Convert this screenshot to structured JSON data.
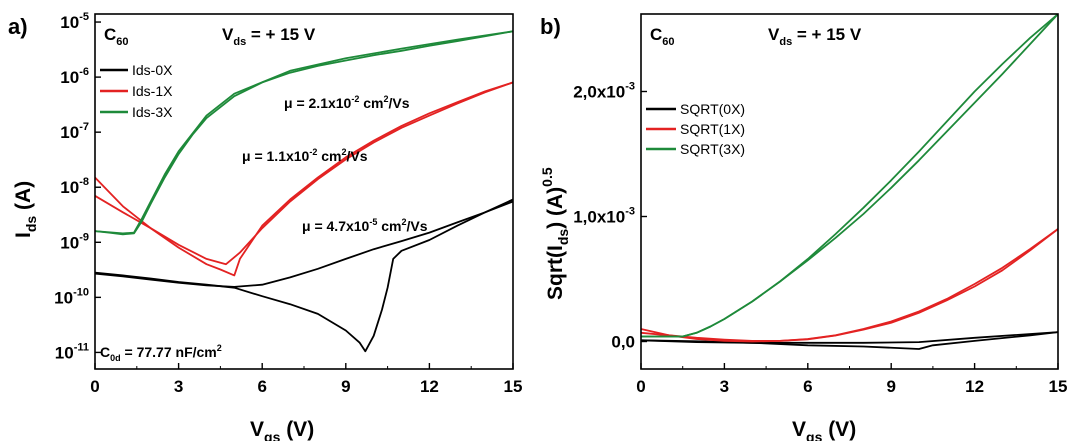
{
  "chart_data": [
    {
      "panel": "a)",
      "type": "line",
      "material": "C",
      "material_sub": "60",
      "condition": {
        "main": "V",
        "sub": "ds",
        "rest": " = + 15 V"
      },
      "xlabel": {
        "main": "V",
        "sub": "gs",
        "rest": " (V)"
      },
      "ylabel": {
        "main": "I",
        "sub": "ds",
        "rest": " (A)"
      },
      "y_scale": "log",
      "xlim": [
        0,
        15
      ],
      "ylim": [
        5e-12,
        1.4e-05
      ],
      "x_ticks": [
        "0",
        "3",
        "6",
        "9",
        "12",
        "15"
      ],
      "y_ticks": [
        {
          "base": "10",
          "exp": "-11",
          "value": 1e-11
        },
        {
          "base": "10",
          "exp": "-10",
          "value": 1e-10
        },
        {
          "base": "10",
          "exp": "-9",
          "value": 1e-09
        },
        {
          "base": "10",
          "exp": "-8",
          "value": 1e-08
        },
        {
          "base": "10",
          "exp": "-7",
          "value": 1e-07
        },
        {
          "base": "10",
          "exp": "-6",
          "value": 1e-06
        },
        {
          "base": "10",
          "exp": "-5",
          "value": 1e-05
        }
      ],
      "legend_position": "top-left",
      "series": [
        {
          "name": "Ids-0X",
          "color": "#000000",
          "x": [
            0,
            1,
            2,
            3,
            4,
            5,
            6,
            7,
            8,
            9,
            9.5,
            9.7,
            10,
            10.3,
            10.5,
            10.7,
            11,
            12,
            13,
            14,
            15
          ],
          "y": [
            2.8e-10,
            2.5e-10,
            2.2e-10,
            1.9e-10,
            1.7e-10,
            1.5e-10,
            1.05e-10,
            7.5e-11,
            5e-11,
            2.5e-11,
            1.5e-11,
            1.05e-11,
            2e-11,
            6e-11,
            1.5e-10,
            5e-10,
            7e-10,
            1.1e-09,
            2e-09,
            3.5e-09,
            6e-09
          ],
          "x_back": [
            15,
            14,
            13,
            12,
            11,
            10,
            9,
            8,
            7,
            6,
            5,
            4,
            3,
            2,
            1,
            0
          ],
          "y_back": [
            5.5e-09,
            3.5e-09,
            2.3e-09,
            1.5e-09,
            1.05e-09,
            7.5e-10,
            5e-10,
            3.3e-10,
            2.3e-10,
            1.7e-10,
            1.55e-10,
            1.65e-10,
            1.85e-10,
            2.1e-10,
            2.4e-10,
            2.7e-10
          ]
        },
        {
          "name": "Ids-1X",
          "color": "#e32222",
          "x": [
            0,
            1,
            2,
            3,
            4,
            4.5,
            5,
            5.2,
            6,
            7,
            8,
            9,
            10,
            11,
            12,
            13,
            14,
            15
          ],
          "y": [
            1.5e-08,
            4.5e-09,
            1.8e-09,
            8e-10,
            4e-10,
            3.2e-10,
            2.5e-10,
            5e-10,
            2e-09,
            6e-09,
            1.5e-08,
            3.5e-08,
            7e-08,
            1.3e-07,
            2.2e-07,
            3.5e-07,
            5.5e-07,
            8e-07
          ],
          "x_back": [
            15,
            14,
            13,
            12,
            11,
            10,
            9,
            8,
            7,
            6,
            5.2,
            4.7,
            4,
            3,
            2,
            1,
            0
          ],
          "y_back": [
            8e-07,
            5.3e-07,
            3.3e-07,
            2e-07,
            1.2e-07,
            6.5e-08,
            3.2e-08,
            1.4e-08,
            5.5e-09,
            1.8e-09,
            6.5e-10,
            4e-10,
            5e-10,
            9e-10,
            1.8e-09,
            3.5e-09,
            7e-09
          ]
        },
        {
          "name": "Ids-3X",
          "color": "#1e8a3a",
          "x": [
            0,
            0.5,
            1,
            1.4,
            1.7,
            2,
            2.5,
            3,
            3.5,
            4,
            5,
            6,
            7,
            8,
            9,
            10,
            11,
            12,
            13,
            14,
            15
          ],
          "y": [
            1.6e-09,
            1.5e-09,
            1.4e-09,
            1.45e-09,
            2.5e-09,
            5e-09,
            1.5e-08,
            4e-08,
            9e-08,
            1.8e-07,
            4.5e-07,
            8e-07,
            1.2e-06,
            1.6e-06,
            2e-06,
            2.5e-06,
            3e-06,
            3.7e-06,
            4.5e-06,
            5.5e-06,
            6.8e-06
          ],
          "x_back": [
            15,
            13,
            11,
            9,
            7,
            5,
            4,
            3,
            2.5,
            2,
            1.7,
            1.4,
            1,
            0
          ],
          "y_back": [
            6.8e-06,
            4.8e-06,
            3.3e-06,
            2.2e-06,
            1.3e-06,
            5e-07,
            2e-07,
            4.5e-08,
            1.7e-08,
            5.5e-09,
            2.8e-09,
            1.5e-09,
            1.45e-09,
            1.6e-09
          ]
        }
      ],
      "annotations": [
        {
          "text": "μ = 2.1x10",
          "sup": "-2",
          "tail": " cm",
          "tail_sup": "2",
          "end": "/Vs",
          "color": "#1e8a3a"
        },
        {
          "text": "μ = 1.1x10",
          "sup": "-2",
          "tail": " cm",
          "tail_sup": "2",
          "end": "/Vs",
          "color": "#e32222"
        },
        {
          "text": "μ = 4.7x10",
          "sup": "-5",
          "tail": " cm",
          "tail_sup": "2",
          "end": "/Vs",
          "color": "#000000"
        },
        {
          "text": "C",
          "sub": "0d",
          "tail": " = 77.77 nF/cm",
          "tail_sup": "2",
          "end": "",
          "color": "#8b2020"
        }
      ]
    },
    {
      "panel": "b)",
      "type": "line",
      "material": "C",
      "material_sub": "60",
      "condition": {
        "main": "V",
        "sub": "ds",
        "rest": " = + 15 V"
      },
      "xlabel": {
        "main": "V",
        "sub": "gs",
        "rest": " (V)"
      },
      "ylabel": {
        "main": "Sqrt(I",
        "sub": "ds",
        "rest": ") (A)",
        "sup": "0.5"
      },
      "y_scale": "linear",
      "xlim": [
        0,
        15
      ],
      "ylim": [
        -0.00022,
        0.00262
      ],
      "x_ticks": [
        "0",
        "3",
        "6",
        "9",
        "12",
        "15"
      ],
      "y_ticks": [
        {
          "base": "0,0",
          "exp": "",
          "value": 0
        },
        {
          "base": "1,0x10",
          "exp": "-3",
          "value": 0.001
        },
        {
          "base": "2,0x10",
          "exp": "-3",
          "value": 0.002
        }
      ],
      "legend_position": "top-left",
      "series": [
        {
          "name": "SQRT(0X)",
          "color": "#000000",
          "x": [
            0,
            2,
            4,
            6,
            8,
            10,
            10.5,
            12,
            14,
            15
          ],
          "y": [
            1e-05,
            2e-06,
            -1e-05,
            -3e-05,
            -4e-05,
            -6e-05,
            -3e-05,
            5e-06,
            5e-05,
            7.5e-05
          ],
          "x_back": [
            15,
            12,
            10,
            8,
            6,
            4,
            2,
            0
          ],
          "y_back": [
            7.5e-05,
            3e-05,
            -5e-06,
            -1e-05,
            -1e-05,
            -1e-05,
            -5e-06,
            1e-05
          ]
        },
        {
          "name": "SQRT(1X)",
          "color": "#e32222",
          "x": [
            0,
            1,
            2,
            3,
            4,
            5,
            6,
            7,
            8,
            9,
            10,
            11,
            12,
            13,
            14,
            15
          ],
          "y": [
            0.0001,
            5e-05,
            2e-05,
            5e-06,
            0,
            5e-06,
            2e-05,
            5e-05,
            0.0001,
            0.00016,
            0.00024,
            0.00034,
            0.00046,
            0.00059,
            0.00074,
            0.0009
          ],
          "x_back": [
            15,
            14,
            13,
            12,
            11,
            10,
            9,
            8,
            7,
            6,
            5,
            4,
            3,
            2,
            1,
            0
          ],
          "y_back": [
            0.0009,
            0.00073,
            0.00057,
            0.00044,
            0.00033,
            0.00023,
            0.00015,
            9.5e-05,
            4.8e-05,
            1.8e-05,
            5e-06,
            5e-06,
            1.5e-05,
            3e-05,
            5e-05,
            7e-05
          ]
        },
        {
          "name": "SQRT(3X)",
          "color": "#1e8a3a",
          "x": [
            0,
            1,
            1.5,
            2,
            2.5,
            3,
            4,
            5,
            6,
            7,
            8,
            9,
            10,
            11,
            12,
            13,
            14,
            15
          ],
          "y": [
            4e-05,
            4e-05,
            4e-05,
            7e-05,
            0.00012,
            0.00018,
            0.00032,
            0.00048,
            0.00066,
            0.00086,
            0.00107,
            0.00129,
            0.00152,
            0.00176,
            0.002,
            0.00222,
            0.00243,
            0.00262
          ],
          "x_back": [
            15,
            14,
            13,
            12,
            11,
            10,
            9,
            8,
            7,
            6,
            5,
            4,
            3,
            2.5,
            2,
            1.5,
            1,
            0
          ],
          "y_back": [
            0.00262,
            0.00238,
            0.00214,
            0.00191,
            0.00168,
            0.00145,
            0.00123,
            0.00102,
            0.00083,
            0.00065,
            0.00048,
            0.00032,
            0.00018,
            0.00012,
            7e-05,
            4e-05,
            4e-05,
            4e-05
          ]
        }
      ],
      "annotations": []
    }
  ]
}
